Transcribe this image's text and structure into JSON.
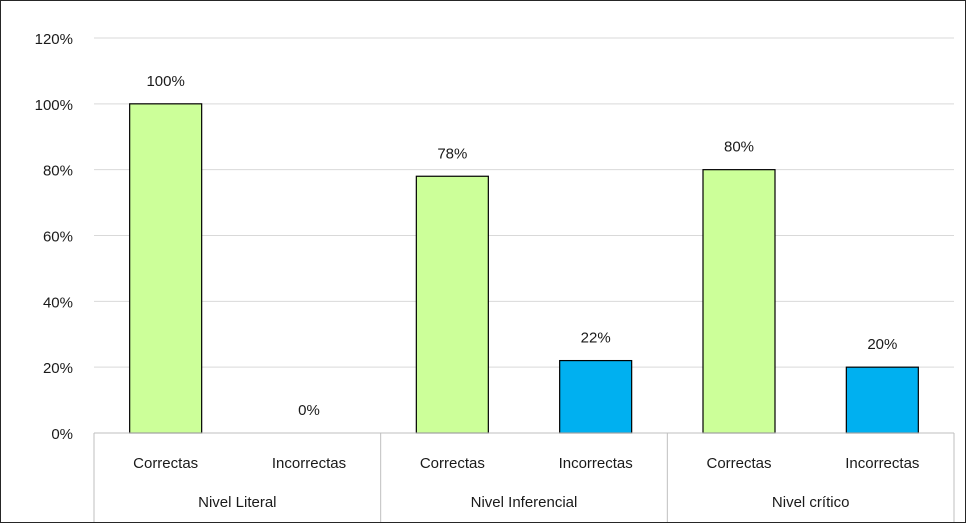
{
  "chart_data": {
    "type": "bar",
    "title": "",
    "xlabel": "",
    "ylabel": "",
    "ylim": [
      0,
      120
    ],
    "ytick_step": 20,
    "ytick_labels": [
      "0%",
      "20%",
      "40%",
      "60%",
      "80%",
      "100%",
      "120%"
    ],
    "grid": true,
    "legend": "none",
    "groups": [
      {
        "label": "Nivel Literal",
        "bars": [
          {
            "category": "Correctas",
            "value": 100,
            "label": "100%",
            "color": "#CCFF99"
          },
          {
            "category": "Incorrectas",
            "value": 0,
            "label": "0%",
            "color": "#00B0F0"
          }
        ]
      },
      {
        "label": "Nivel Inferencial",
        "bars": [
          {
            "category": "Correctas",
            "value": 78,
            "label": "78%",
            "color": "#CCFF99"
          },
          {
            "category": "Incorrectas",
            "value": 22,
            "label": "22%",
            "color": "#00B0F0"
          }
        ]
      },
      {
        "label": "Nivel crítico",
        "bars": [
          {
            "category": "Correctas",
            "value": 80,
            "label": "80%",
            "color": "#CCFF99"
          },
          {
            "category": "Incorrectas",
            "value": 20,
            "label": "20%",
            "color": "#00B0F0"
          }
        ]
      }
    ],
    "colors": {
      "correctas": "#CCFF99",
      "incorrectas": "#00B0F0",
      "bar_outline": "#000000",
      "grid": "#D9D9D9",
      "axis": "#BFBFBF"
    }
  }
}
